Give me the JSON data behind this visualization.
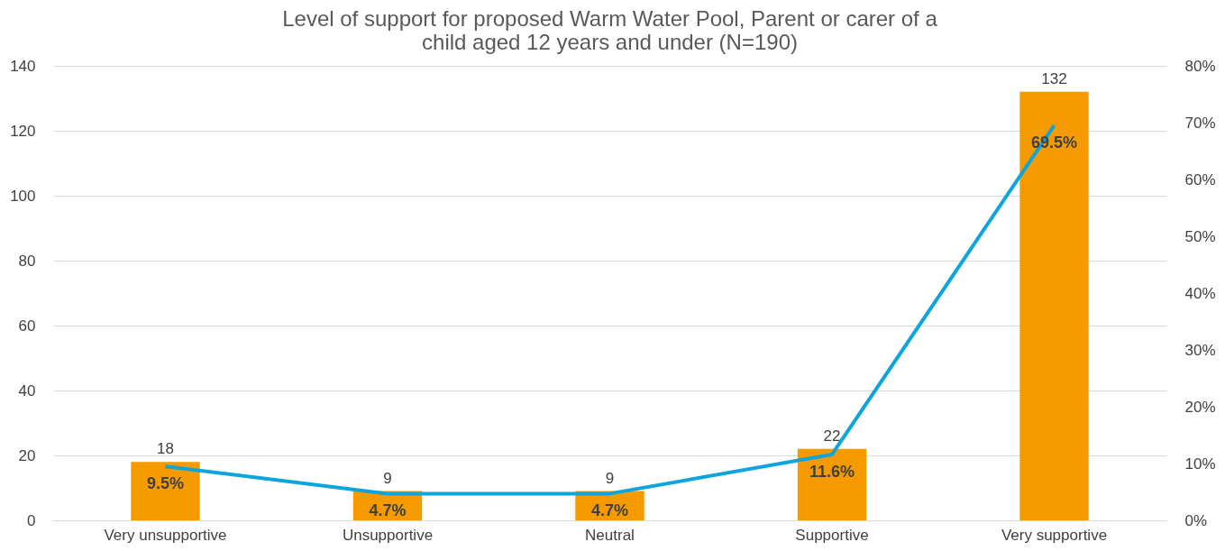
{
  "chart_data": {
    "type": "bar",
    "title": "Level of support for proposed Warm Water Pool, Parent or carer of a child aged 12 years and under (N=190)",
    "categories": [
      "Very unsupportive",
      "Unsupportive",
      "Neutral",
      "Supportive",
      "Very supportive"
    ],
    "series": [
      {
        "color": "#f59b00",
        "values": [
          18,
          9,
          9,
          22,
          132
        ]
      },
      {
        "type": "line",
        "axis": "y2",
        "color": "#0ea5dc",
        "values": [
          9.5,
          4.7,
          4.7,
          11.6,
          69.5
        ],
        "value_labels": [
          "9.5%",
          "4.7%",
          "4.7%",
          "11.6%",
          "69.5%"
        ]
      }
    ],
    "ylim": [
      0,
      140
    ],
    "yticks": [
      0,
      20,
      40,
      60,
      80,
      100,
      120,
      140
    ],
    "y2lim": [
      0,
      80
    ],
    "y2ticks": [
      {
        "value": 0,
        "label": "0%"
      },
      {
        "value": 10,
        "label": "10%"
      },
      {
        "value": 20,
        "label": "20%"
      },
      {
        "value": 30,
        "label": "30%"
      },
      {
        "value": 40,
        "label": "40%"
      },
      {
        "value": 50,
        "label": "50%"
      },
      {
        "value": 60,
        "label": "60%"
      },
      {
        "value": 70,
        "label": "70%"
      },
      {
        "value": 80,
        "label": "80%"
      }
    ],
    "grid": "y",
    "data_labels": true,
    "marker": "none",
    "line_style": "solid"
  }
}
